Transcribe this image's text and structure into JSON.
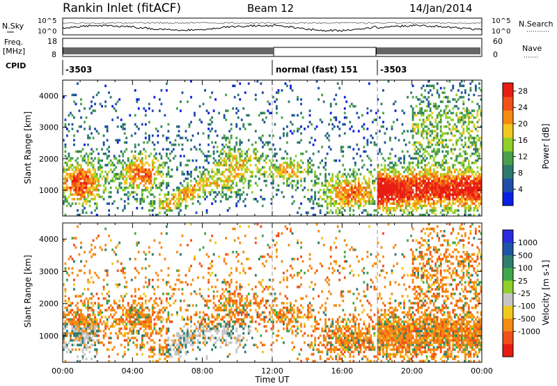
{
  "header": {
    "station": "Rankin Inlet (fitACF)",
    "beam": "Beam 12",
    "date": "14/Jan/2014"
  },
  "top_panels": {
    "noise_left_label": "N.Sky",
    "noise_right_label": "N.Search",
    "noise_left_ticks": [
      "10^5",
      "10^0"
    ],
    "noise_right_ticks": [
      "10^5",
      "10^0"
    ],
    "freq_label_1": "Freq.",
    "freq_label_2": "[MHz]",
    "freq_ticks": [
      "18",
      "8"
    ],
    "nave_label": "Nave",
    "nave_ticks": [
      "60",
      "0"
    ],
    "cpid_label": "CPID",
    "cpid_segments": [
      {
        "label": "-3503",
        "start_hour": 0,
        "end_hour": 12
      },
      {
        "label": "normal (fast) 151",
        "start_hour": 12,
        "end_hour": 18
      },
      {
        "label": "-3503",
        "start_hour": 18,
        "end_hour": 24
      }
    ]
  },
  "chart_data": [
    {
      "type": "heatmap",
      "panel": "power",
      "ylabel": "Slant Range [km]",
      "xlabel": "",
      "x_ticks": [
        "00:00",
        "04:00",
        "08:00",
        "12:00",
        "16:00",
        "20:00",
        "00:00"
      ],
      "xlim_hours": [
        0,
        24
      ],
      "y_ticks": [
        1000,
        2000,
        3000,
        4000
      ],
      "ylim_km": [
        180,
        4500
      ],
      "colorbar_label": "Power [dB]",
      "colorbar_ticks": [
        "28",
        "24",
        "20",
        "16",
        "12",
        "8",
        "4"
      ],
      "colorbar_range": [
        0,
        30
      ],
      "colors": [
        "#0a1fe6",
        "#1f4ea8",
        "#2e7a6e",
        "#4aa04a",
        "#8fd12a",
        "#f0c820",
        "#f58a14",
        "#f0501a",
        "#e81c12"
      ],
      "mode_changes_hours": [
        12,
        18
      ]
    },
    {
      "type": "heatmap",
      "panel": "velocity",
      "ylabel": "Slant Range [km]",
      "xlabel": "Time UT",
      "x_ticks": [
        "00:00",
        "04:00",
        "08:00",
        "12:00",
        "16:00",
        "20:00",
        "00:00"
      ],
      "xlim_hours": [
        0,
        24
      ],
      "y_ticks": [
        1000,
        2000,
        3000,
        4000
      ],
      "ylim_km": [
        180,
        4500
      ],
      "colorbar_label": "Velocity [m s-1]",
      "colorbar_ticks": [
        "1000",
        "500",
        "100",
        "25",
        "-25",
        "-100",
        "-500",
        "-1000"
      ],
      "colors": [
        "#2a2ae0",
        "#1f55a8",
        "#2e7e6e",
        "#3fa84a",
        "#8fd12a",
        "#c6c6c6",
        "#f0c820",
        "#f58a14",
        "#f0501a",
        "#e81c12"
      ],
      "mode_changes_hours": [
        12,
        18
      ]
    }
  ]
}
